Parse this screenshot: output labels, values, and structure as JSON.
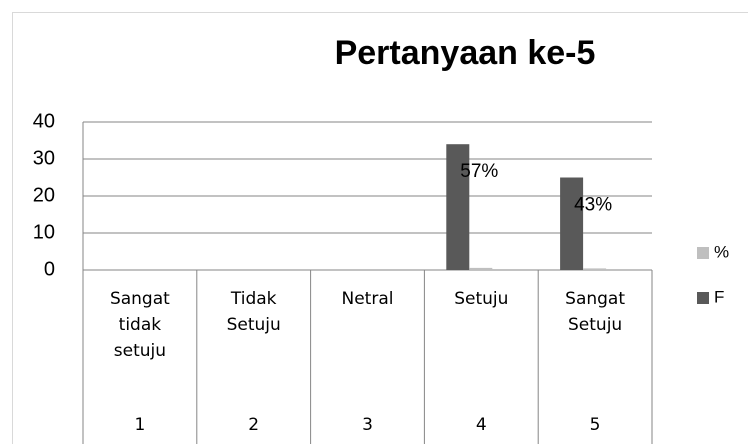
{
  "chart_data": {
    "type": "bar",
    "title": "Pertanyaan ke-5",
    "categories": [
      "Sangat tidak setuju",
      "Tidak Setuju",
      "Netral",
      "Setuju",
      "Sangat Setuju"
    ],
    "category_codes": [
      "1",
      "2",
      "3",
      "4",
      "5"
    ],
    "series": [
      {
        "name": "F",
        "color": "#595959",
        "values": [
          null,
          null,
          null,
          34,
          25
        ]
      },
      {
        "name": "%",
        "color": "#bfbfbf",
        "values": [
          null,
          null,
          null,
          0.57,
          0.43
        ],
        "value_labels": [
          null,
          null,
          null,
          "57%",
          "43%"
        ]
      }
    ],
    "legend_order": [
      "%",
      "F"
    ],
    "ylim": [
      0,
      40
    ],
    "yticks": [
      0,
      10,
      20,
      30,
      40
    ],
    "grid": true,
    "legend": "right"
  }
}
